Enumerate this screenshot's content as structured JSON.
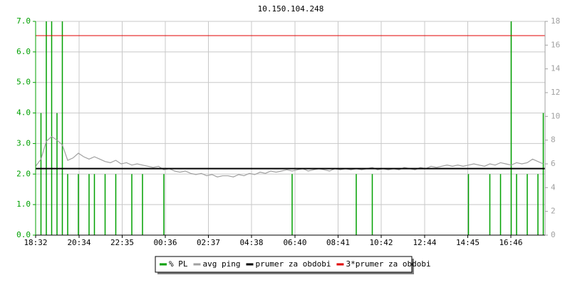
{
  "chart_data": {
    "type": "line",
    "title": "10.150.104.248",
    "x": [
      0,
      15,
      30,
      45,
      60,
      75,
      90,
      105,
      120,
      135,
      150,
      165,
      180,
      195,
      210,
      225,
      240,
      255,
      270,
      285,
      300,
      315,
      330,
      345,
      360,
      375,
      390,
      405,
      420,
      435,
      450,
      465,
      480,
      495,
      510,
      525,
      540,
      555,
      570,
      585,
      600,
      615,
      630,
      645,
      660,
      675,
      690,
      705,
      720,
      735,
      750,
      765,
      780,
      795,
      810,
      825,
      840,
      855,
      870,
      885,
      900,
      915,
      930,
      945,
      960,
      975,
      990,
      1005,
      1020,
      1035,
      1050,
      1065,
      1080,
      1095,
      1110,
      1125,
      1140,
      1155,
      1170,
      1185,
      1200,
      1215,
      1230,
      1245,
      1260,
      1275,
      1290,
      1305,
      1320,
      1335,
      1350,
      1365,
      1380,
      1395,
      1410,
      1425
    ],
    "xlim": [
      0,
      1430
    ],
    "xticks": [
      {
        "value": 0,
        "label": "18:32"
      },
      {
        "value": 122,
        "label": "20:34"
      },
      {
        "value": 243,
        "label": "22:35"
      },
      {
        "value": 364,
        "label": "00:36"
      },
      {
        "value": 485,
        "label": "02:37"
      },
      {
        "value": 606,
        "label": "04:38"
      },
      {
        "value": 728,
        "label": "06:40"
      },
      {
        "value": 849,
        "label": "08:41"
      },
      {
        "value": 970,
        "label": "10:42"
      },
      {
        "value": 1092,
        "label": "12:44"
      },
      {
        "value": 1213,
        "label": "14:45"
      },
      {
        "value": 1334,
        "label": "16:46"
      }
    ],
    "ylim": [
      0,
      7
    ],
    "yticks": [
      {
        "value": 0,
        "label": "0.0"
      },
      {
        "value": 1,
        "label": "1.0"
      },
      {
        "value": 2,
        "label": "2.0"
      },
      {
        "value": 3,
        "label": "3.0"
      },
      {
        "value": 4,
        "label": "4.0"
      },
      {
        "value": 5,
        "label": "5.0"
      },
      {
        "value": 6,
        "label": "6.0"
      },
      {
        "value": 7,
        "label": "7.0"
      }
    ],
    "y2lim": [
      0,
      18
    ],
    "y2ticks": [
      0,
      2,
      4,
      6,
      8,
      10,
      12,
      14,
      16,
      18
    ],
    "grid": true,
    "legend": "bottom",
    "series": [
      {
        "name": "% PL",
        "type": "spikes",
        "color": "#00a000",
        "values": [
          0,
          4.0,
          7.0,
          7.0,
          4.0,
          7.0,
          2.0,
          0,
          2.0,
          0,
          2.0,
          2.0,
          0,
          2.0,
          0,
          2.0,
          0,
          0,
          2.0,
          0,
          2.0,
          0,
          0,
          0,
          2.0,
          0,
          0,
          0,
          0,
          0,
          0,
          0,
          0,
          0,
          0,
          0,
          0,
          0,
          0,
          0,
          0,
          0,
          0,
          0,
          0,
          0,
          0,
          0,
          2.0,
          0,
          0,
          0,
          0,
          0,
          0,
          0,
          0,
          0,
          0,
          0,
          2.0,
          0,
          0,
          2.0,
          0,
          0,
          0,
          0,
          0,
          0,
          0,
          0,
          0,
          0,
          0,
          0,
          0,
          0,
          0,
          0,
          0,
          2.0,
          0,
          0,
          0,
          2.0,
          0,
          2.0,
          0,
          7.0,
          2.0,
          0,
          2.0,
          0,
          2.0,
          4.0
        ]
      },
      {
        "name": "avg ping",
        "type": "line",
        "axis": "y2",
        "color": "#a0a0a0",
        "values": [
          5.8,
          6.4,
          7.9,
          8.3,
          8.0,
          7.6,
          6.3,
          6.5,
          6.9,
          6.6,
          6.4,
          6.6,
          6.4,
          6.2,
          6.1,
          6.3,
          6.0,
          6.1,
          5.9,
          6.0,
          5.9,
          5.8,
          5.7,
          5.8,
          5.5,
          5.6,
          5.4,
          5.3,
          5.4,
          5.2,
          5.1,
          5.2,
          5.0,
          5.1,
          4.9,
          5.0,
          5.0,
          4.9,
          5.1,
          5.0,
          5.2,
          5.1,
          5.3,
          5.2,
          5.4,
          5.3,
          5.4,
          5.5,
          5.4,
          5.5,
          5.6,
          5.4,
          5.5,
          5.6,
          5.5,
          5.4,
          5.6,
          5.5,
          5.6,
          5.5,
          5.6,
          5.5,
          5.6,
          5.7,
          5.5,
          5.6,
          5.5,
          5.6,
          5.5,
          5.7,
          5.6,
          5.5,
          5.7,
          5.6,
          5.8,
          5.7,
          5.8,
          5.9,
          5.8,
          5.9,
          5.8,
          5.9,
          6.0,
          5.9,
          5.8,
          6.0,
          5.9,
          6.1,
          6.0,
          5.9,
          6.1,
          6.0,
          6.1,
          6.4,
          6.2,
          6.0
        ]
      },
      {
        "name": "prumer za obdobi",
        "type": "hline",
        "axis": "y2",
        "color": "#000000",
        "value": 5.6
      },
      {
        "name": "3*prumer za obdobi",
        "type": "hline",
        "axis": "y2",
        "color": "#e00000",
        "value": 16.8
      }
    ]
  }
}
